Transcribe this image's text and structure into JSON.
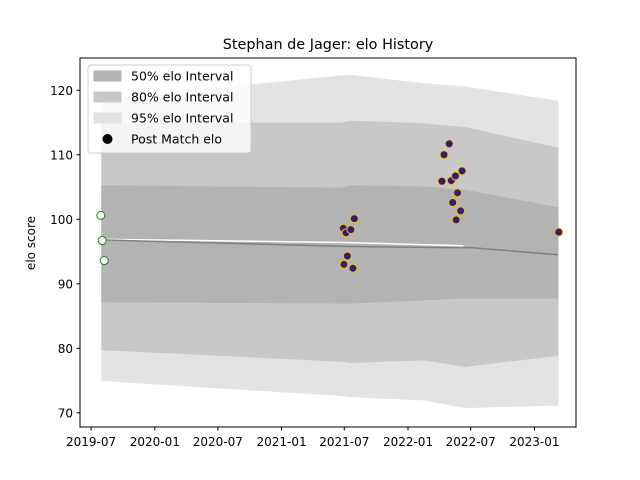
{
  "chart_data": {
    "type": "line",
    "title": "Stephan de Jager: elo History",
    "xlabel": "",
    "ylabel": "elo score",
    "x_axis": {
      "type": "date",
      "range": [
        "2019-05-30",
        "2023-05-01"
      ],
      "ticks": [
        "2019-07-01",
        "2020-01-01",
        "2020-07-01",
        "2021-01-01",
        "2021-07-01",
        "2022-01-01",
        "2022-07-01",
        "2023-01-01"
      ],
      "tick_labels": [
        "2019-07",
        "2020-01",
        "2020-07",
        "2021-01",
        "2021-07",
        "2022-01",
        "2022-07",
        "2023-01"
      ]
    },
    "y_axis": {
      "range": [
        67.8,
        125
      ],
      "ticks": [
        70,
        80,
        90,
        100,
        110,
        120
      ],
      "tick_labels": [
        "70",
        "80",
        "90",
        "100",
        "110",
        "120"
      ]
    },
    "grid": false,
    "legend": {
      "placement": "top-left",
      "entries": [
        "50% elo Interval",
        "80% elo Interval",
        "95% elo Interval",
        "Post Match elo"
      ]
    },
    "colors": {
      "band_50": "#b3b3b3",
      "band_80": "#c8c8c8",
      "band_95": "#e3e3e3",
      "mean_line": "#808080",
      "highlight_line": "#ffffff",
      "point_fill_a": "#ffffff",
      "point_edge_a": "#2a7a2a",
      "point_fill_b": "#3b1c6b",
      "point_edge_b": "#e6c229"
    },
    "mean_line": [
      {
        "x": "2019-08-01",
        "y": 96.8
      },
      {
        "x": "2021-07-01",
        "y": 95.8
      },
      {
        "x": "2022-04-20",
        "y": 95.6
      },
      {
        "x": "2022-07-01",
        "y": 95.6
      },
      {
        "x": "2023-03-10",
        "y": 94.5
      }
    ],
    "highlight_line": [
      {
        "x": "2019-08-01",
        "y": 96.9
      },
      {
        "x": "2021-07-01",
        "y": 96.4
      },
      {
        "x": "2022-06-10",
        "y": 95.9
      }
    ],
    "bands": [
      {
        "name": "95% elo Interval",
        "x": [
          "2019-08-01",
          "2021-06-20",
          "2021-07-20",
          "2022-02-15",
          "2022-06-15",
          "2023-03-10"
        ],
        "lower": [
          75.0,
          72.7,
          72.5,
          72.0,
          70.8,
          71.2
        ],
        "upper": [
          118.5,
          122.2,
          122.3,
          121.0,
          120.5,
          118.3
        ]
      },
      {
        "name": "80% elo Interval",
        "x": [
          "2019-08-01",
          "2021-06-20",
          "2021-07-20",
          "2022-02-15",
          "2022-06-15",
          "2023-03-10"
        ],
        "lower": [
          79.8,
          78.0,
          77.8,
          78.2,
          77.2,
          78.9
        ],
        "upper": [
          114.8,
          114.9,
          115.2,
          114.8,
          114.2,
          111.0
        ]
      },
      {
        "name": "50% elo Interval",
        "x": [
          "2019-08-01",
          "2021-06-20",
          "2021-07-20",
          "2022-02-15",
          "2022-06-15",
          "2023-03-10"
        ],
        "lower": [
          87.2,
          87.0,
          87.0,
          87.5,
          87.8,
          87.8
        ],
        "upper": [
          105.2,
          104.8,
          105.2,
          105.0,
          104.5,
          101.8
        ]
      }
    ],
    "points": [
      {
        "x": "2019-07-29",
        "y": 100.6,
        "style": "a"
      },
      {
        "x": "2019-08-02",
        "y": 96.7,
        "style": "a"
      },
      {
        "x": "2019-08-08",
        "y": 93.6,
        "style": "a"
      },
      {
        "x": "2021-06-28",
        "y": 98.6,
        "style": "b"
      },
      {
        "x": "2021-06-30",
        "y": 93.0,
        "style": "b"
      },
      {
        "x": "2021-07-06",
        "y": 97.9,
        "style": "b"
      },
      {
        "x": "2021-07-10",
        "y": 94.3,
        "style": "b"
      },
      {
        "x": "2021-07-20",
        "y": 98.4,
        "style": "b"
      },
      {
        "x": "2021-07-26",
        "y": 92.4,
        "style": "b"
      },
      {
        "x": "2021-07-30",
        "y": 100.1,
        "style": "b"
      },
      {
        "x": "2022-04-09",
        "y": 105.9,
        "style": "b"
      },
      {
        "x": "2022-04-15",
        "y": 110.0,
        "style": "b"
      },
      {
        "x": "2022-04-30",
        "y": 111.7,
        "style": "b"
      },
      {
        "x": "2022-05-06",
        "y": 106.0,
        "style": "b"
      },
      {
        "x": "2022-05-10",
        "y": 102.6,
        "style": "b"
      },
      {
        "x": "2022-05-18",
        "y": 106.7,
        "style": "b"
      },
      {
        "x": "2022-05-20",
        "y": 99.9,
        "style": "b"
      },
      {
        "x": "2022-05-24",
        "y": 104.1,
        "style": "b"
      },
      {
        "x": "2022-06-02",
        "y": 101.3,
        "style": "b"
      },
      {
        "x": "2022-06-06",
        "y": 107.5,
        "style": "b"
      },
      {
        "x": "2023-03-12",
        "y": 98.0,
        "style": "b"
      }
    ]
  }
}
